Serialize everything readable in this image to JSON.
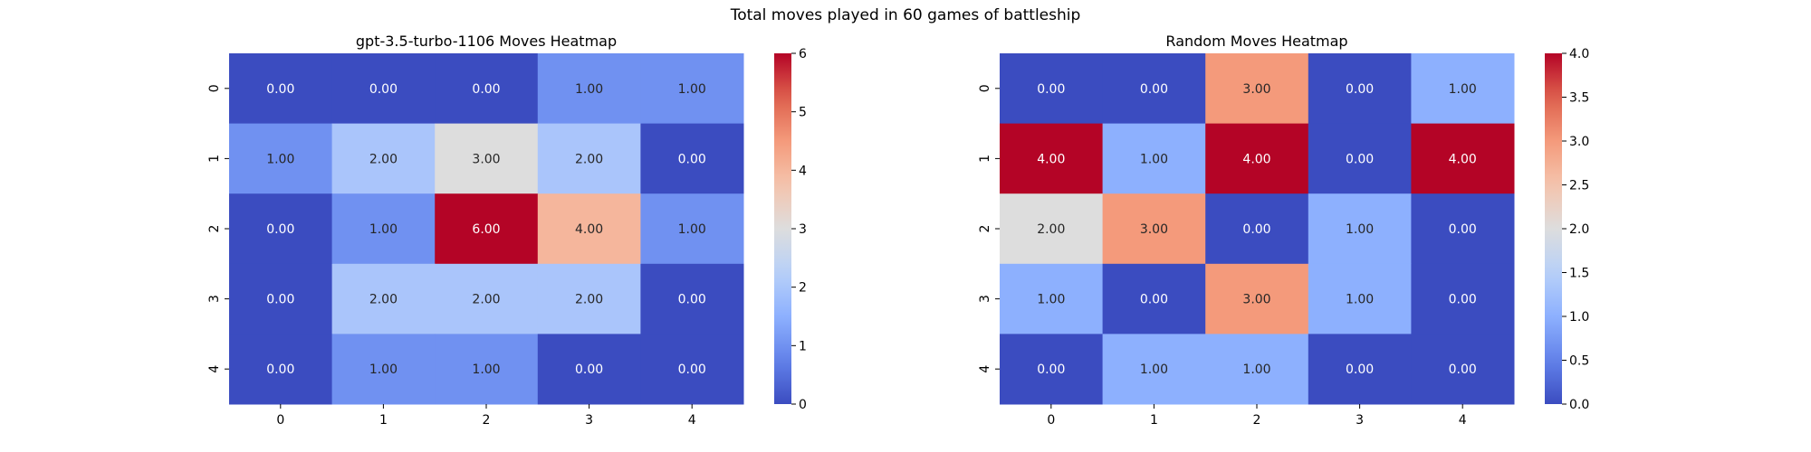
{
  "suptitle": "Total moves played in 60 games of battleship",
  "chart_data": [
    {
      "type": "heatmap",
      "title": "gpt-3.5-turbo-1106 Moves Heatmap",
      "x_categories": [
        "0",
        "1",
        "2",
        "3",
        "4"
      ],
      "y_categories": [
        "0",
        "1",
        "2",
        "3",
        "4"
      ],
      "values": [
        [
          0,
          0,
          0,
          1,
          1
        ],
        [
          1,
          2,
          3,
          2,
          0
        ],
        [
          0,
          1,
          6,
          4,
          1
        ],
        [
          0,
          2,
          2,
          2,
          0
        ],
        [
          0,
          1,
          1,
          0,
          0
        ]
      ],
      "annotations": [
        [
          "0.00",
          "0.00",
          "0.00",
          "1.00",
          "1.00"
        ],
        [
          "1.00",
          "2.00",
          "3.00",
          "2.00",
          "0.00"
        ],
        [
          "0.00",
          "1.00",
          "6.00",
          "4.00",
          "1.00"
        ],
        [
          "0.00",
          "2.00",
          "2.00",
          "2.00",
          "0.00"
        ],
        [
          "0.00",
          "1.00",
          "1.00",
          "0.00",
          "0.00"
        ]
      ],
      "vmin": 0,
      "vmax": 6,
      "colormap": "coolwarm",
      "colorbar_ticks": [
        "0",
        "1",
        "2",
        "3",
        "4",
        "5",
        "6"
      ],
      "colorbar_tick_values": [
        0,
        1,
        2,
        3,
        4,
        5,
        6
      ]
    },
    {
      "type": "heatmap",
      "title": "Random Moves Heatmap",
      "x_categories": [
        "0",
        "1",
        "2",
        "3",
        "4"
      ],
      "y_categories": [
        "0",
        "1",
        "2",
        "3",
        "4"
      ],
      "values": [
        [
          0,
          0,
          3,
          0,
          1
        ],
        [
          4,
          1,
          4,
          0,
          4
        ],
        [
          2,
          3,
          0,
          1,
          0
        ],
        [
          1,
          0,
          3,
          1,
          0
        ],
        [
          0,
          1,
          1,
          0,
          0
        ]
      ],
      "annotations": [
        [
          "0.00",
          "0.00",
          "3.00",
          "0.00",
          "1.00"
        ],
        [
          "4.00",
          "1.00",
          "4.00",
          "0.00",
          "4.00"
        ],
        [
          "2.00",
          "3.00",
          "0.00",
          "1.00",
          "0.00"
        ],
        [
          "1.00",
          "0.00",
          "3.00",
          "1.00",
          "0.00"
        ],
        [
          "0.00",
          "1.00",
          "1.00",
          "0.00",
          "0.00"
        ]
      ],
      "vmin": 0,
      "vmax": 4,
      "colormap": "coolwarm",
      "colorbar_ticks": [
        "0.0",
        "0.5",
        "1.0",
        "1.5",
        "2.0",
        "2.5",
        "3.0",
        "3.5",
        "4.0"
      ],
      "colorbar_tick_values": [
        0,
        0.5,
        1,
        1.5,
        2,
        2.5,
        3,
        3.5,
        4
      ]
    }
  ]
}
